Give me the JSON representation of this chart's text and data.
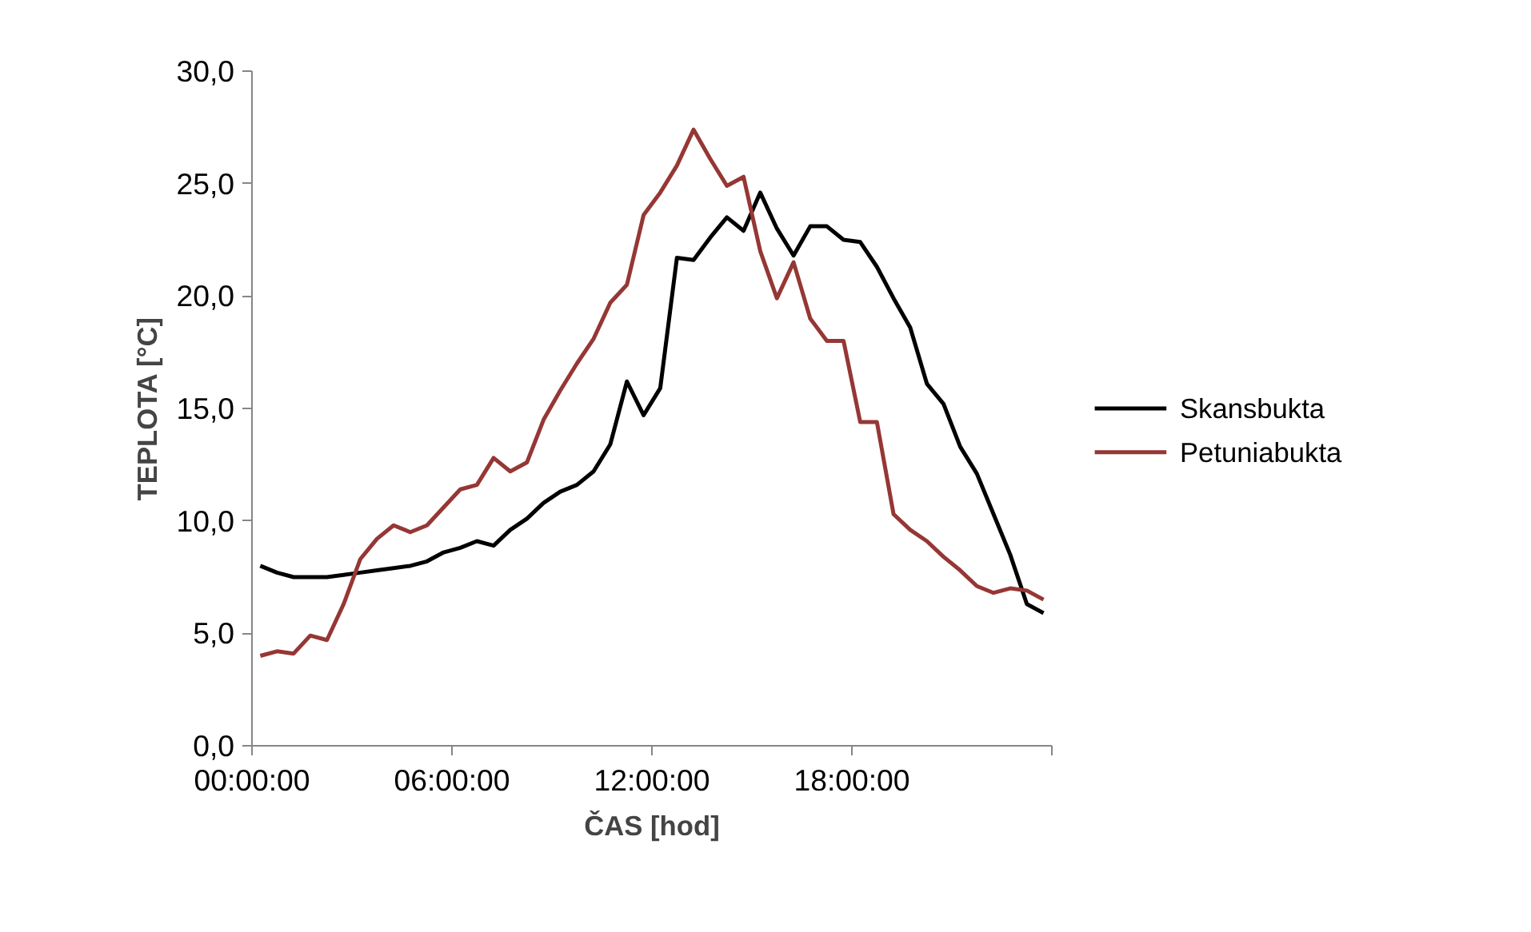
{
  "chart_data": {
    "type": "line",
    "xlabel": "ČAS [hod]",
    "ylabel": "TEPLOTA [°C]",
    "x": [
      0.25,
      0.75,
      1.25,
      1.75,
      2.25,
      2.75,
      3.25,
      3.75,
      4.25,
      4.75,
      5.25,
      5.75,
      6.25,
      6.75,
      7.25,
      7.75,
      8.25,
      8.75,
      9.25,
      9.75,
      10.25,
      10.75,
      11.25,
      11.75,
      12.25,
      12.75,
      13.25,
      13.75,
      14.25,
      14.75,
      15.25,
      15.75,
      16.25,
      16.75,
      17.25,
      17.75,
      18.25,
      18.75,
      19.25,
      19.75,
      20.25,
      20.75,
      21.25,
      21.75,
      22.25,
      22.75,
      23.25,
      23.75
    ],
    "series": [
      {
        "name": "Skansbukta",
        "color": "#000000",
        "values": [
          8.0,
          7.7,
          7.5,
          7.5,
          7.5,
          7.6,
          7.7,
          7.8,
          7.9,
          8.0,
          8.2,
          8.6,
          8.8,
          9.1,
          8.9,
          9.6,
          10.1,
          10.8,
          11.3,
          11.6,
          12.2,
          13.4,
          16.2,
          14.7,
          15.9,
          21.7,
          21.6,
          22.6,
          23.5,
          22.9,
          24.6,
          23.0,
          21.8,
          23.1,
          23.1,
          22.5,
          22.4,
          21.3,
          19.9,
          18.6,
          16.1,
          15.2,
          13.3,
          12.1,
          10.3,
          8.5,
          6.3,
          5.9
        ]
      },
      {
        "name": "Petuniabukta",
        "color": "#953735",
        "values": [
          4.0,
          4.2,
          4.1,
          4.9,
          4.7,
          6.3,
          8.3,
          9.2,
          9.8,
          9.5,
          9.8,
          10.6,
          11.4,
          11.6,
          12.8,
          12.2,
          12.6,
          14.5,
          15.8,
          17.0,
          18.1,
          19.7,
          20.5,
          23.6,
          24.6,
          25.8,
          27.4,
          26.1,
          24.9,
          25.3,
          22.0,
          19.9,
          21.5,
          19.0,
          18.0,
          18.0,
          14.4,
          14.4,
          10.3,
          9.6,
          9.1,
          8.4,
          7.8,
          7.1,
          6.8,
          7.0,
          6.9,
          6.5
        ]
      }
    ],
    "xlim": [
      0,
      24
    ],
    "xticks": [
      {
        "value": 0,
        "label": "00:00:00"
      },
      {
        "value": 6,
        "label": "06:00:00"
      },
      {
        "value": 12,
        "label": "12:00:00"
      },
      {
        "value": 18,
        "label": "18:00:00"
      },
      {
        "value": 24,
        "label": null
      }
    ],
    "ylim": [
      0,
      30
    ],
    "yticks": [
      {
        "value": 0,
        "label": "0,0"
      },
      {
        "value": 5,
        "label": "5,0"
      },
      {
        "value": 10,
        "label": "10,0"
      },
      {
        "value": 15,
        "label": "15,0"
      },
      {
        "value": 20,
        "label": "20,0"
      },
      {
        "value": 25,
        "label": "25,0"
      },
      {
        "value": 30,
        "label": "30,0"
      }
    ],
    "grid": false,
    "legend": "right",
    "marker": "none",
    "line_style": "solid"
  }
}
